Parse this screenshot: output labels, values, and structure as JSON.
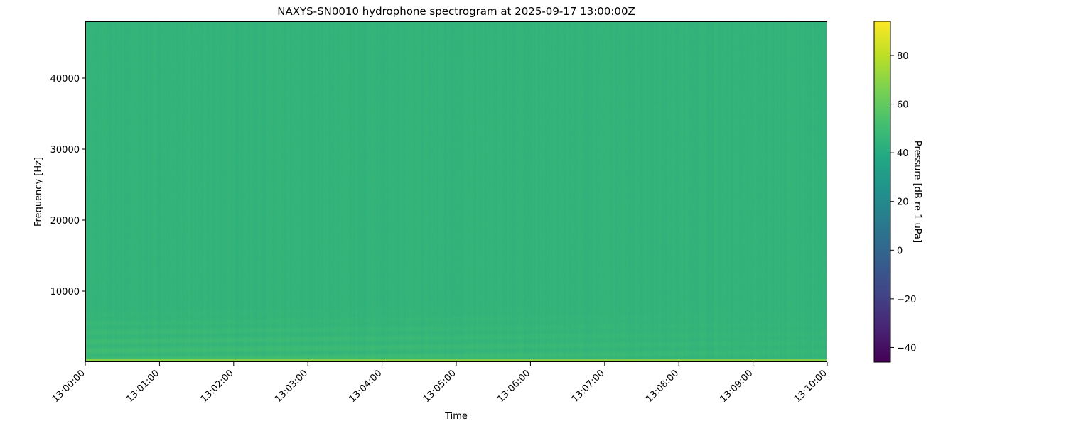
{
  "chart_data": {
    "type": "heatmap",
    "title": "NAXYS-SN0010 hydrophone spectrogram at 2025-09-17 13:00:00Z",
    "xlabel": "Time",
    "ylabel": "Frequency [Hz]",
    "x_ticks": [
      "13:00:00",
      "13:01:00",
      "13:02:00",
      "13:03:00",
      "13:04:00",
      "13:05:00",
      "13:06:00",
      "13:07:00",
      "13:08:00",
      "13:09:00",
      "13:10:00"
    ],
    "xlim": [
      "13:00:00",
      "13:10:00"
    ],
    "y_ticks": [
      10000,
      20000,
      30000,
      40000
    ],
    "ylim": [
      0,
      48000
    ],
    "colormap": "viridis",
    "colorbar": {
      "label": "Pressure [dB re 1 uPa]",
      "ticks": [
        -40,
        -20,
        0,
        20,
        40,
        60,
        80
      ],
      "range": [
        -46,
        94
      ]
    },
    "typical_level_db": 45,
    "low_frequency_band": {
      "freq_max_hz": 8000,
      "level_db": 52
    },
    "lowest_bin_level_db": 70,
    "grid": false
  }
}
